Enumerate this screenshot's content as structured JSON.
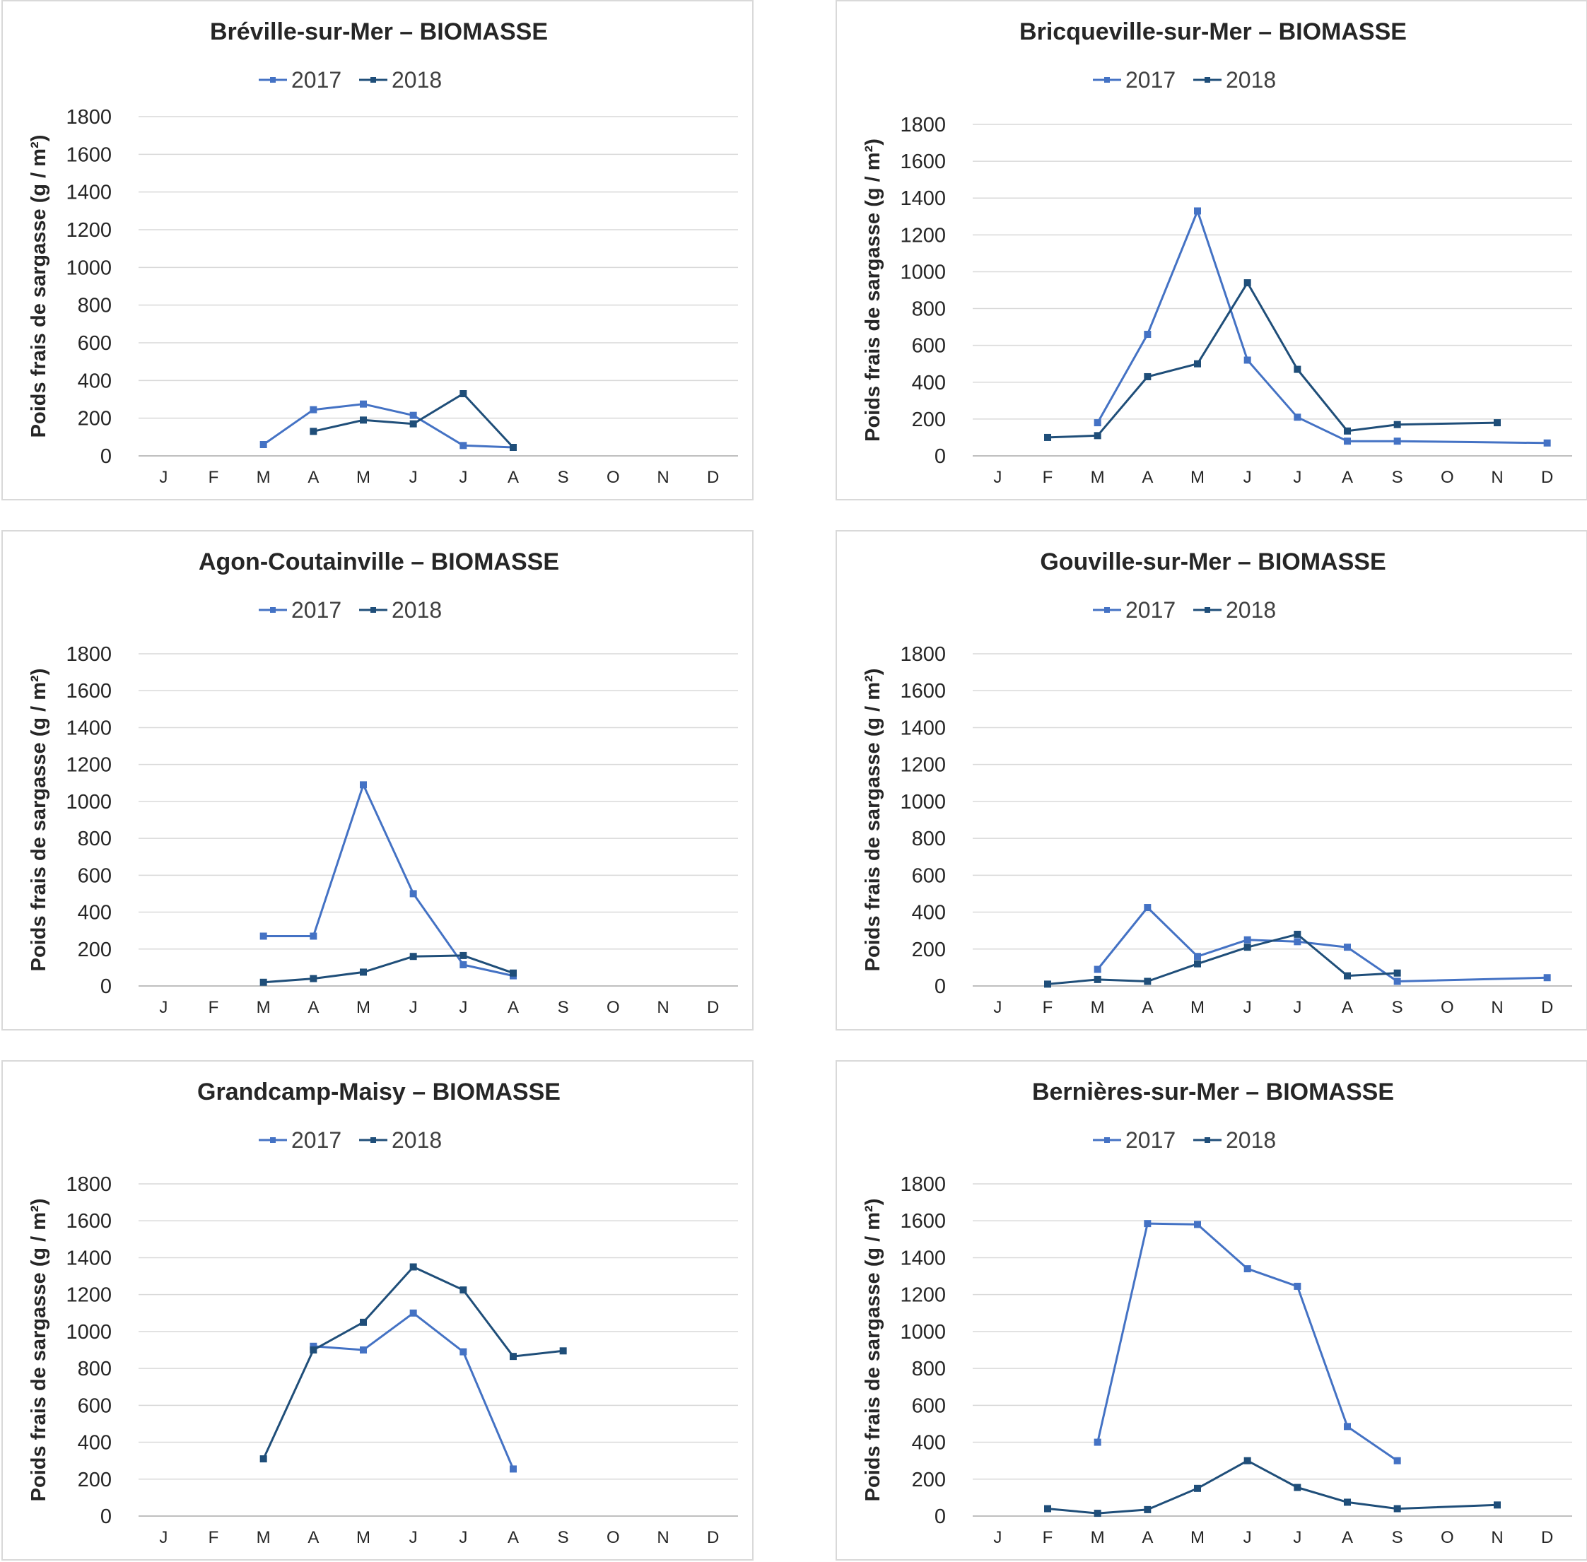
{
  "colors": {
    "y2017": "#4472c4",
    "y2018": "#1f4e79",
    "grid": "#d9d9d9",
    "axis": "#bfbfbf"
  },
  "chart_data": [
    {
      "type": "line",
      "title": "Bréville-sur-Mer  –  BIOMASSE",
      "ylabel": "Poids frais de sargasse (g / m²)",
      "xlabel": "",
      "categories": [
        "J",
        "F",
        "M",
        "A",
        "M",
        "J",
        "J",
        "A",
        "S",
        "O",
        "N",
        "D"
      ],
      "ylim": [
        0,
        1800
      ],
      "yticks": [
        "0",
        "200",
        "400",
        "600",
        "800",
        "1000",
        "1200",
        "1400",
        "1600",
        "1800"
      ],
      "legend_position": "top",
      "series": [
        {
          "name": "2017",
          "values": [
            null,
            null,
            60,
            245,
            275,
            215,
            55,
            45,
            null,
            null,
            null,
            null
          ]
        },
        {
          "name": "2018",
          "values": [
            null,
            null,
            null,
            130,
            190,
            170,
            330,
            45,
            null,
            null,
            null,
            null
          ]
        }
      ]
    },
    {
      "type": "line",
      "title": "Bricqueville-sur-Mer  –  BIOMASSE",
      "ylabel": "Poids frais de sargasse (g / m²)",
      "xlabel": "",
      "categories": [
        "J",
        "F",
        "M",
        "A",
        "M",
        "J",
        "J",
        "A",
        "S",
        "O",
        "N",
        "D"
      ],
      "ylim": [
        0,
        1800
      ],
      "yticks": [
        "0",
        "200",
        "400",
        "600",
        "800",
        "1000",
        "1200",
        "1400",
        "1600",
        "1800"
      ],
      "legend_position": "top",
      "series": [
        {
          "name": "2017",
          "values": [
            null,
            null,
            180,
            660,
            1330,
            520,
            210,
            80,
            80,
            null,
            null,
            70
          ]
        },
        {
          "name": "2018",
          "values": [
            null,
            100,
            110,
            430,
            500,
            940,
            470,
            135,
            170,
            null,
            180,
            null
          ]
        }
      ]
    },
    {
      "type": "line",
      "title": "Agon-Coutainville  –  BIOMASSE",
      "ylabel": "Poids frais de sargasse (g / m²)",
      "xlabel": "",
      "categories": [
        "J",
        "F",
        "M",
        "A",
        "M",
        "J",
        "J",
        "A",
        "S",
        "O",
        "N",
        "D"
      ],
      "ylim": [
        0,
        1800
      ],
      "yticks": [
        "0",
        "200",
        "400",
        "600",
        "800",
        "1000",
        "1200",
        "1400",
        "1600",
        "1800"
      ],
      "legend_position": "top",
      "series": [
        {
          "name": "2017",
          "values": [
            null,
            null,
            270,
            270,
            1090,
            500,
            115,
            55,
            null,
            null,
            null,
            null
          ]
        },
        {
          "name": "2018",
          "values": [
            null,
            null,
            20,
            40,
            75,
            160,
            165,
            70,
            null,
            null,
            null,
            null
          ]
        }
      ]
    },
    {
      "type": "line",
      "title": "Gouville-sur-Mer  –  BIOMASSE",
      "ylabel": "Poids frais de sargasse (g / m²)",
      "xlabel": "",
      "categories": [
        "J",
        "F",
        "M",
        "A",
        "M",
        "J",
        "J",
        "A",
        "S",
        "O",
        "N",
        "D"
      ],
      "ylim": [
        0,
        1800
      ],
      "yticks": [
        "0",
        "200",
        "400",
        "600",
        "800",
        "1000",
        "1200",
        "1400",
        "1600",
        "1800"
      ],
      "legend_position": "top",
      "series": [
        {
          "name": "2017",
          "values": [
            null,
            null,
            90,
            425,
            160,
            250,
            240,
            210,
            25,
            null,
            null,
            45
          ]
        },
        {
          "name": "2018",
          "values": [
            null,
            10,
            35,
            25,
            120,
            210,
            280,
            55,
            70,
            null,
            null,
            null
          ]
        }
      ]
    },
    {
      "type": "line",
      "title": "Grandcamp-Maisy  –  BIOMASSE",
      "ylabel": "Poids frais  de sargasse (g / m²)",
      "xlabel": "",
      "categories": [
        "J",
        "F",
        "M",
        "A",
        "M",
        "J",
        "J",
        "A",
        "S",
        "O",
        "N",
        "D"
      ],
      "ylim": [
        0,
        1800
      ],
      "yticks": [
        "0",
        "200",
        "400",
        "600",
        "800",
        "1000",
        "1200",
        "1400",
        "1600",
        "1800"
      ],
      "legend_position": "top",
      "series": [
        {
          "name": "2017",
          "values": [
            null,
            null,
            null,
            920,
            900,
            1100,
            890,
            255,
            null,
            null,
            null,
            null
          ]
        },
        {
          "name": "2018",
          "values": [
            null,
            null,
            310,
            900,
            1050,
            1350,
            1225,
            865,
            895,
            null,
            null,
            null
          ]
        }
      ]
    },
    {
      "type": "line",
      "title": "Bernières-sur-Mer  –  BIOMASSE",
      "ylabel": "Poids frais de sargasse (g / m²)",
      "xlabel": "",
      "categories": [
        "J",
        "F",
        "M",
        "A",
        "M",
        "J",
        "J",
        "A",
        "S",
        "O",
        "N",
        "D"
      ],
      "ylim": [
        0,
        1800
      ],
      "yticks": [
        "0",
        "200",
        "400",
        "600",
        "800",
        "1000",
        "1200",
        "1400",
        "1600",
        "1800"
      ],
      "legend_position": "top",
      "series": [
        {
          "name": "2017",
          "values": [
            null,
            null,
            400,
            1585,
            1580,
            1340,
            1245,
            485,
            300,
            null,
            null,
            null
          ]
        },
        {
          "name": "2018",
          "values": [
            null,
            40,
            15,
            35,
            150,
            300,
            155,
            75,
            40,
            null,
            60,
            null
          ]
        }
      ]
    }
  ]
}
